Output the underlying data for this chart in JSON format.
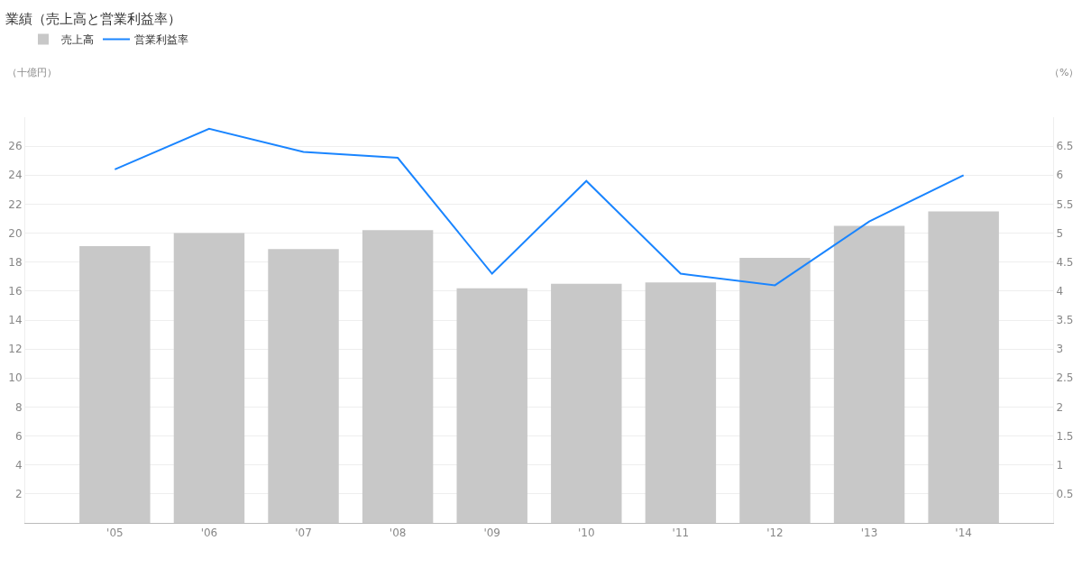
{
  "chart_data": {
    "type": "bar",
    "title": "業績（売上高と営業利益率）",
    "ylabel": "（十億円）",
    "y2label": "（%）",
    "categories": [
      "'05",
      "'06",
      "'07",
      "'08",
      "'09",
      "'10",
      "'11",
      "'12",
      "'13",
      "'14"
    ],
    "series": [
      {
        "name": "売上高",
        "color": "#c8c8c8",
        "values": [
          19.1,
          20.0,
          18.9,
          20.2,
          16.2,
          16.5,
          16.6,
          18.3,
          20.5,
          21.5
        ]
      },
      {
        "name": "営業利益率",
        "type": "line",
        "axis": "y2",
        "color": "#1a85ff",
        "values": [
          6.1,
          6.8,
          6.4,
          6.3,
          4.3,
          5.9,
          4.3,
          4.1,
          5.2,
          6.0
        ]
      }
    ],
    "ylim": [
      0,
      28
    ],
    "yticks": [
      2,
      4,
      6,
      8,
      10,
      12,
      14,
      16,
      18,
      20,
      22,
      24,
      26
    ],
    "y2lim": [
      0,
      7
    ],
    "y2ticks": [
      0.5,
      1.0,
      1.5,
      2.0,
      2.5,
      3.0,
      3.5,
      4.0,
      4.5,
      5.0,
      5.5,
      6.0,
      6.5
    ],
    "grid": "y",
    "legend": "top left",
    "marker": "none",
    "line_style": "solid"
  }
}
